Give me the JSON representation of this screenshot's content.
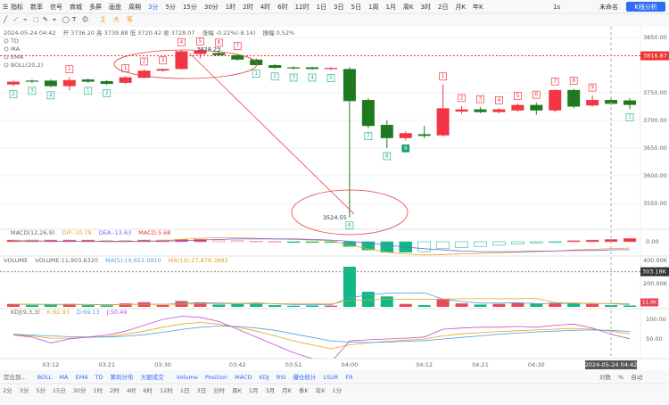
{
  "toolbar": {
    "items": [
      "指标",
      "数率",
      "信号",
      "商城",
      "多屏",
      "画盘",
      "周期"
    ],
    "periods": [
      "3分",
      "5分",
      "15分",
      "30分",
      "1时",
      "2时",
      "4时",
      "6时",
      "12时",
      "1日",
      "3日",
      "5日",
      "1周",
      "1月",
      "周K",
      "3时",
      "2日",
      "月K",
      "年K"
    ],
    "active_period": 0,
    "speed": "1s",
    "layout_name": "未命名",
    "analysis_button": "K线分析"
  },
  "draw_tools": [
    "主",
    "大",
    "筹"
  ],
  "info": {
    "datetime": "2024-05-24 04:42",
    "ohlc": "开 3736.20 高 3739.88 低 3720.42 收 3728.07",
    "change": "涨幅 -0.22%(-8.14)",
    "amplitude": "振幅 0.52%"
  },
  "indicators": [
    "TD",
    "MA",
    "EMA",
    "BOLL(20,2)"
  ],
  "price_ticks": [
    {
      "value": 3850,
      "label": "3850.00"
    },
    {
      "value": 3750,
      "label": "3750.00"
    },
    {
      "value": 3700,
      "label": "3700.00"
    },
    {
      "value": 3650,
      "label": "3650.00"
    },
    {
      "value": 3600,
      "label": "3600.00"
    },
    {
      "value": 3550,
      "label": "3550.00"
    }
  ],
  "price_line": {
    "value": 3816.87,
    "label": "3816.87"
  },
  "annotations": {
    "high": {
      "value": 3828.23,
      "label": "3828.23"
    },
    "low": {
      "value": 3524.55,
      "label": "3524.55"
    }
  },
  "candles": [
    [
      3765,
      3772,
      3762,
      3770
    ],
    [
      3772,
      3774,
      3768,
      3770
    ],
    [
      3772,
      3774,
      3760,
      3762
    ],
    [
      3762,
      3778,
      3754,
      3773
    ],
    [
      3774,
      3776,
      3768,
      3770
    ],
    [
      3771,
      3773,
      3764,
      3766
    ],
    [
      3768,
      3780,
      3766,
      3778
    ],
    [
      3777,
      3792,
      3776,
      3790
    ],
    [
      3790,
      3794,
      3788,
      3793
    ],
    [
      3793,
      3827,
      3792,
      3825
    ],
    [
      3820,
      3828.23,
      3812,
      3826
    ],
    [
      3822,
      3826,
      3816,
      3818
    ],
    [
      3818,
      3820,
      3808,
      3810
    ],
    [
      3810,
      3812,
      3799,
      3800
    ],
    [
      3800,
      3802,
      3794,
      3795
    ],
    [
      3796,
      3798,
      3792,
      3794
    ],
    [
      3796,
      3797,
      3792,
      3793
    ],
    [
      3793,
      3796,
      3791,
      3795
    ],
    [
      3793,
      3796,
      3524.55,
      3735
    ],
    [
      3737,
      3740,
      3686,
      3690
    ],
    [
      3692,
      3700,
      3650,
      3668
    ],
    [
      3668,
      3680,
      3664,
      3677
    ],
    [
      3675,
      3690,
      3668,
      3672
    ],
    [
      3673,
      3765,
      3671,
      3722
    ],
    [
      3716,
      3726,
      3712,
      3720
    ],
    [
      3720,
      3724,
      3713,
      3715
    ],
    [
      3715,
      3722,
      3713,
      3720
    ],
    [
      3718,
      3730,
      3716,
      3728
    ],
    [
      3728,
      3732,
      3710,
      3718
    ],
    [
      3718,
      3756,
      3715,
      3755
    ],
    [
      3755,
      3757,
      3722,
      3725
    ],
    [
      3727,
      3745,
      3725,
      3737
    ],
    [
      3737,
      3740,
      3728,
      3730
    ],
    [
      3736.2,
      3739.88,
      3720.42,
      3728.07
    ]
  ],
  "td_up": [
    null,
    null,
    null,
    "1",
    null,
    null,
    "1",
    "2",
    "3",
    "4",
    "5",
    "6",
    "7",
    null,
    null,
    null,
    null,
    null,
    null,
    null,
    null,
    null,
    null,
    "1",
    "2",
    "3",
    "4",
    "5",
    "6",
    "7",
    "8",
    "9",
    null,
    null
  ],
  "td_down": [
    "2",
    "3",
    "4",
    null,
    "1",
    "2",
    null,
    null,
    null,
    null,
    null,
    null,
    null,
    "1",
    "2",
    "3",
    "4",
    "5",
    "6",
    "7",
    "8",
    "9",
    null,
    null,
    null,
    null,
    null,
    null,
    null,
    null,
    null,
    null,
    null,
    "1"
  ],
  "macd": {
    "title": "MACD(12,26,9)",
    "dif_label": "DIF:-10.79",
    "dea_label": "DEA:-13.63",
    "macd_label": "MACD:5.68",
    "hist": [
      3,
      3,
      3,
      3,
      3,
      2,
      2,
      3,
      3,
      4,
      4,
      3,
      2,
      1,
      0.5,
      -0.5,
      -1,
      -1,
      -8,
      -14,
      -18,
      -18,
      -17,
      -12,
      -10,
      -8,
      -6,
      -4,
      -2,
      -1,
      2,
      3,
      4,
      5.68
    ],
    "dif": [
      2,
      2,
      1,
      1,
      1,
      0,
      0,
      1,
      2,
      4,
      6,
      7,
      7,
      6,
      5,
      4,
      3,
      2,
      -6,
      -12,
      -18,
      -21,
      -23,
      -22,
      -21,
      -20,
      -19,
      -18,
      -17,
      -16,
      -14,
      -13,
      -12,
      -10.79
    ],
    "dea": [
      1,
      1,
      1,
      1,
      1,
      1,
      1,
      1,
      1,
      2,
      3,
      4,
      5,
      5,
      5,
      5,
      4,
      3,
      1,
      -2,
      -6,
      -9,
      -12,
      -14,
      -16,
      -17,
      -17,
      -17,
      -16,
      -16,
      -15,
      -15,
      -14,
      -13.63
    ],
    "ticks": [
      {
        "value": 0,
        "label": "0.00"
      }
    ]
  },
  "volume": {
    "title": "VOLUME",
    "values_label": "VOLUME:11,903.6320",
    "ma5_label": "MA(5):19,651.0910",
    "ma10_label": "MA(10):27,878.3882",
    "values": [
      25000,
      15000,
      20000,
      25000,
      15000,
      12000,
      30000,
      40000,
      15000,
      50000,
      40000,
      20000,
      25000,
      30000,
      15000,
      10000,
      12000,
      10000,
      346000,
      130000,
      90000,
      25000,
      15000,
      70000,
      30000,
      20000,
      25000,
      35000,
      30000,
      35000,
      30000,
      25000,
      15000,
      11903.632
    ],
    "ma5": [
      22000,
      21000,
      20000,
      21000,
      20000,
      17000,
      20000,
      24000,
      22000,
      29000,
      35000,
      33000,
      30000,
      33000,
      26000,
      20000,
      20000,
      17000,
      79000,
      103000,
      118000,
      120000,
      121000,
      66000,
      46000,
      32000,
      32000,
      36000,
      28000,
      29000,
      31000,
      31000,
      27000,
      19651.091
    ],
    "ma10": [
      24000,
      23000,
      22000,
      22000,
      21000,
      20000,
      21000,
      22000,
      21000,
      24000,
      26000,
      27000,
      27000,
      28000,
      27000,
      27000,
      27000,
      25000,
      54000,
      61000,
      66000,
      66000,
      65000,
      67000,
      69000,
      70000,
      70000,
      70000,
      72000,
      38000,
      33000,
      30000,
      30000,
      27878.3882
    ],
    "ticks": [
      {
        "value": 200000,
        "label": "200.00K"
      },
      {
        "value": 400000,
        "label": "400.00K"
      }
    ],
    "crosshair": {
      "value": 303180,
      "label": "303.18K"
    },
    "last": {
      "value": 11903.632,
      "label": "11.9K"
    }
  },
  "kdj": {
    "title": "KDJ(9,3,3)",
    "k_label": "K:62.93",
    "d_label": "D:69.13",
    "j_label": "J:50.49",
    "k": [
      60,
      58,
      52,
      52,
      54,
      56,
      62,
      70,
      80,
      88,
      92,
      88,
      80,
      70,
      58,
      45,
      35,
      25,
      35,
      40,
      44,
      47,
      50,
      58,
      63,
      66,
      69,
      71,
      73,
      75,
      77,
      75,
      70,
      62.93
    ],
    "d": [
      62,
      60,
      58,
      56,
      55,
      55,
      57,
      61,
      67,
      74,
      80,
      83,
      82,
      78,
      72,
      63,
      54,
      45,
      42,
      41,
      42,
      44,
      46,
      50,
      54,
      58,
      62,
      65,
      68,
      70,
      72,
      73,
      72,
      69.13
    ],
    "j": [
      60,
      55,
      40,
      50,
      55,
      60,
      70,
      85,
      100,
      108,
      105,
      95,
      75,
      55,
      35,
      15,
      0,
      -10,
      45,
      48,
      50,
      52,
      55,
      75,
      78,
      80,
      80,
      82,
      80,
      85,
      88,
      78,
      62,
      50.49
    ],
    "ticks": [
      {
        "value": 100,
        "label": "100.00"
      },
      {
        "value": 50,
        "label": "50.00"
      }
    ]
  },
  "time_axis": [
    {
      "index": 2,
      "label": "03:12"
    },
    {
      "index": 5,
      "label": "03:21"
    },
    {
      "index": 8,
      "label": "03:30"
    },
    {
      "index": 12,
      "label": "03:42"
    },
    {
      "index": 15,
      "label": "03:51"
    },
    {
      "index": 18,
      "label": "04:00"
    },
    {
      "index": 22,
      "label": "04:12"
    },
    {
      "index": 25,
      "label": "04:21"
    },
    {
      "index": 28,
      "label": "04:30"
    }
  ],
  "crosshair_time": {
    "index": 32,
    "label": "2024-05-24 04:42"
  },
  "indicator_bar": {
    "locate": "定位到...",
    "main": [
      "BOLL",
      "MA",
      "EMA",
      "TD",
      "筹码分布",
      "大额成交"
    ],
    "sub": [
      "Volume",
      "Position",
      "MACD",
      "KDJ",
      "RSI",
      "爆仓统计",
      "LSUR",
      "FR"
    ],
    "options": [
      "对数",
      "%",
      "自动"
    ]
  },
  "period_bar": [
    "2分",
    "3分",
    "5分",
    "15分",
    "30分",
    "1时",
    "2时",
    "4时",
    "6时",
    "12时",
    "1日",
    "3日",
    "分时",
    "周K",
    "1月",
    "3月",
    "月K",
    "季K",
    "年K",
    "1分"
  ]
}
